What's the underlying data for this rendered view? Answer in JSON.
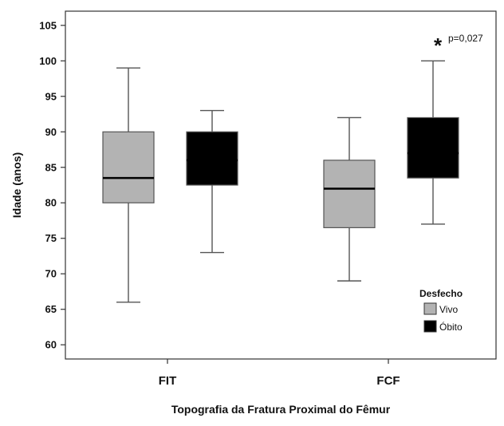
{
  "chart_data": {
    "type": "boxplot",
    "xlabel": "Topografia da Fratura Proximal do Fêmur",
    "ylabel": "Idade (anos)",
    "ylim": [
      58,
      107
    ],
    "yticks": [
      60,
      65,
      70,
      75,
      80,
      85,
      90,
      95,
      100,
      105
    ],
    "grid": false,
    "categories": [
      "FIT",
      "FCF"
    ],
    "legend": {
      "title": "Desfecho",
      "placement": "bottom-right",
      "entries": [
        "Vivo",
        "Óbito"
      ]
    },
    "series": [
      {
        "name": "Vivo",
        "color": "#b3b3b3",
        "boxes": [
          {
            "category": "FIT",
            "min": 66,
            "q1": 80,
            "median": 83.5,
            "q3": 90,
            "max": 99
          },
          {
            "category": "FCF",
            "min": 69,
            "q1": 76.5,
            "median": 82,
            "q3": 86,
            "max": 92
          }
        ]
      },
      {
        "name": "Óbito",
        "color": "#000000",
        "boxes": [
          {
            "category": "FIT",
            "min": 73,
            "q1": 82.5,
            "median": 86,
            "q3": 90,
            "max": 93
          },
          {
            "category": "FCF",
            "min": 77,
            "q1": 83.5,
            "median": 87,
            "q3": 92,
            "max": 100
          }
        ]
      }
    ],
    "annotations": [
      {
        "category": "FCF",
        "series": "Óbito",
        "symbol": "*",
        "text": "p=0,027"
      }
    ]
  }
}
